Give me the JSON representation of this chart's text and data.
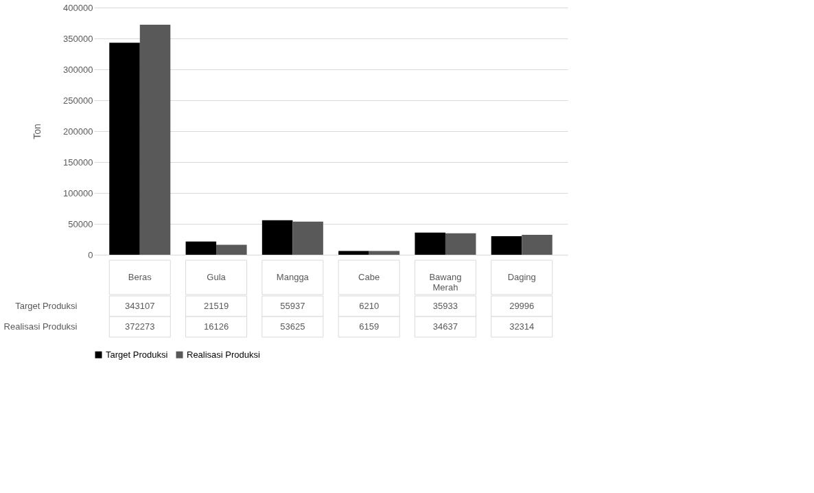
{
  "chart_data": {
    "type": "bar",
    "ylabel": "Ton",
    "categories": [
      "Beras",
      "Gula",
      "Mangga",
      "Cabe",
      "Bawang Merah",
      "Daging"
    ],
    "series": [
      {
        "name": "Target Produksi",
        "color": "#000000",
        "values": [
          343107,
          21519,
          55937,
          6210,
          35933,
          29996
        ]
      },
      {
        "name": "Realisasi Produksi",
        "color": "#595959",
        "values": [
          372273,
          16126,
          53625,
          6159,
          34637,
          32314
        ]
      }
    ],
    "ylim": [
      0,
      400000
    ],
    "yticks": [
      0,
      50000,
      100000,
      150000,
      200000,
      250000,
      300000,
      350000,
      400000
    ],
    "grid": "y",
    "legend": "bottom",
    "data_labels": true
  }
}
